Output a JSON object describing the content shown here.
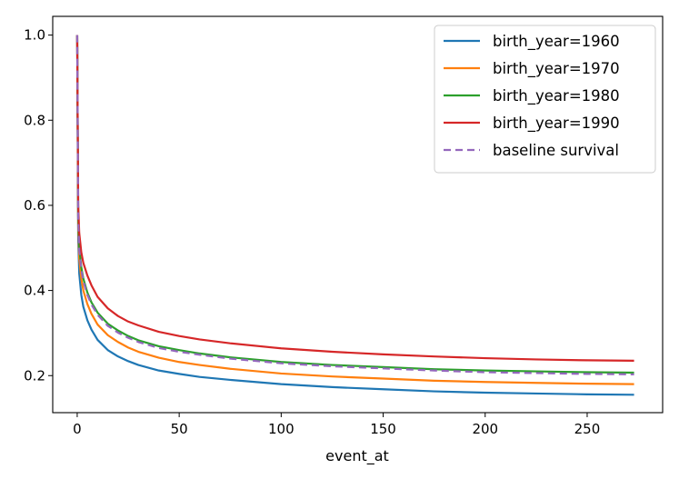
{
  "chart_data": {
    "type": "line",
    "title": "",
    "xlabel": "event_at",
    "ylabel": "",
    "xlim": [
      -12,
      287
    ],
    "ylim": [
      0.113,
      1.044
    ],
    "xticks": [
      0,
      50,
      100,
      150,
      200,
      250
    ],
    "yticks": [
      0.2,
      0.4,
      0.6,
      0.8,
      1.0
    ],
    "ytick_labels": [
      "0.2",
      "0.4",
      "0.6",
      "0.8",
      "1.0"
    ],
    "grid": false,
    "legend_position": "top-right",
    "x": [
      0,
      0.5,
      1,
      2,
      3,
      5,
      7,
      10,
      15,
      20,
      25,
      30,
      40,
      50,
      60,
      75,
      100,
      125,
      150,
      175,
      200,
      225,
      250,
      273
    ],
    "series": [
      {
        "name": "birth_year=1960",
        "color": "#1f77b4",
        "dashed": false,
        "values": [
          1.0,
          0.52,
          0.44,
          0.39,
          0.362,
          0.33,
          0.308,
          0.284,
          0.26,
          0.245,
          0.234,
          0.225,
          0.212,
          0.204,
          0.197,
          0.19,
          0.18,
          0.173,
          0.168,
          0.163,
          0.16,
          0.158,
          0.156,
          0.155
        ]
      },
      {
        "name": "birth_year=1970",
        "color": "#ff7f0e",
        "dashed": false,
        "values": [
          1.0,
          0.55,
          0.475,
          0.428,
          0.4,
          0.368,
          0.345,
          0.32,
          0.295,
          0.279,
          0.266,
          0.256,
          0.242,
          0.232,
          0.225,
          0.216,
          0.205,
          0.198,
          0.193,
          0.188,
          0.185,
          0.183,
          0.181,
          0.18
        ]
      },
      {
        "name": "birth_year=1980",
        "color": "#2ca02c",
        "dashed": false,
        "values": [
          1.0,
          0.575,
          0.5,
          0.455,
          0.428,
          0.395,
          0.372,
          0.348,
          0.322,
          0.306,
          0.293,
          0.283,
          0.269,
          0.26,
          0.252,
          0.243,
          0.232,
          0.225,
          0.22,
          0.215,
          0.212,
          0.21,
          0.208,
          0.207
        ]
      },
      {
        "name": "birth_year=1990",
        "color": "#d62728",
        "dashed": false,
        "values": [
          1.0,
          0.6,
          0.535,
          0.49,
          0.465,
          0.435,
          0.412,
          0.385,
          0.358,
          0.34,
          0.327,
          0.318,
          0.303,
          0.293,
          0.285,
          0.276,
          0.264,
          0.256,
          0.25,
          0.245,
          0.241,
          0.238,
          0.236,
          0.235
        ]
      },
      {
        "name": "baseline survival",
        "color": "#9467bd",
        "dashed": true,
        "values": [
          1.0,
          0.57,
          0.495,
          0.45,
          0.422,
          0.39,
          0.367,
          0.343,
          0.317,
          0.301,
          0.289,
          0.279,
          0.265,
          0.256,
          0.249,
          0.24,
          0.229,
          0.222,
          0.217,
          0.212,
          0.208,
          0.206,
          0.204,
          0.203
        ]
      }
    ]
  }
}
